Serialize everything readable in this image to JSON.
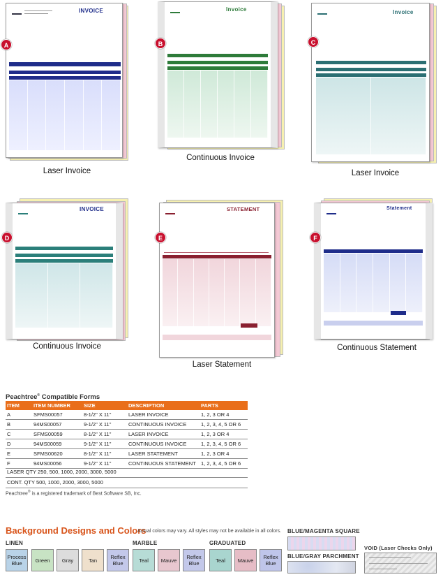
{
  "thumbnails": [
    {
      "letter": "A",
      "caption": "Laser Invoice",
      "title": "INVOICE"
    },
    {
      "letter": "B",
      "caption": "Continuous Invoice",
      "title": "Invoice"
    },
    {
      "letter": "C",
      "caption": "Laser Invoice",
      "title": "Invoice"
    },
    {
      "letter": "D",
      "caption": "Continuous Invoice",
      "title": "INVOICE"
    },
    {
      "letter": "E",
      "caption": "Laser Statement",
      "title": "STATEMENT"
    },
    {
      "letter": "F",
      "caption": "Continuous Statement",
      "title": "Statement"
    }
  ],
  "forms_table": {
    "title": "Peachtree",
    "title_mark": "®",
    "title_suffix": " Compatible Forms",
    "headers": [
      "ITEM",
      "ITEM NUMBER",
      "SIZE",
      "DESCRIPTION",
      "PARTS"
    ],
    "rows": [
      [
        "A",
        "SFMS00057",
        "8-1/2\" X 11\"",
        "LASER INVOICE",
        "1, 2, 3 OR 4"
      ],
      [
        "B",
        "94MS00057",
        "9-1/2\" X 11\"",
        "CONTINUOUS INVOICE",
        "1, 2, 3, 4, 5 OR 6"
      ],
      [
        "C",
        "SFMS00059",
        "8-1/2\" X 11\"",
        "LASER INVOICE",
        "1, 2, 3 OR 4"
      ],
      [
        "D",
        "94MS00059",
        "9-1/2\" X 11\"",
        "CONTINUOUS INVOICE",
        "1, 2, 3, 4, 5 OR 6"
      ],
      [
        "E",
        "SFMS00620",
        "8-1/2\" X 11\"",
        "LASER STATEMENT",
        "1, 2, 3 OR 4"
      ],
      [
        "F",
        "94MS00056",
        "9-1/2\" X 11\"",
        "CONTINUOUS STATEMENT",
        "1, 2, 3, 4, 5 OR 6"
      ]
    ],
    "laser_qty": "LASER QTY 250, 500, 1000, 2000, 3000, 5000",
    "cont_qty": "CONT. QTY 500, 1000, 2000, 3000, 5000",
    "trademark_name": "Peachtree",
    "trademark_mark": "®",
    "trademark_rest": " is a registered trademark of Best Software SB, Inc."
  },
  "background_designs": {
    "title": "Background Designs and Colors",
    "note": "Actual colors may vary. All styles may not be available in all colors.",
    "groups": {
      "linen": "LINEN",
      "marble": "MARBLE",
      "graduated": "GRADUATED",
      "blue_magenta": "BLUE/MAGENTA SQUARE",
      "blue_gray": "BLUE/GRAY PARCHMENT",
      "void": "VOID (Laser Checks Only)"
    },
    "swatches": [
      {
        "label": "Process Blue",
        "color": "#b9d3e8"
      },
      {
        "label": "Green",
        "color": "#c8e3c4"
      },
      {
        "label": "Gray",
        "color": "#dcdcdc"
      },
      {
        "label": "Tan",
        "color": "#efe0cc"
      },
      {
        "label": "Reflex Blue",
        "color": "#c3c8ea"
      },
      {
        "label": "Teal",
        "color": "#b7dcd6"
      },
      {
        "label": "Mauve",
        "color": "#e8c7cf"
      },
      {
        "label": "Reflex Blue",
        "color": "#c3c8ea"
      },
      {
        "label": "Teal",
        "color": "#a9d5cf"
      },
      {
        "label": "Mauve",
        "color": "#e6bdc6"
      },
      {
        "label": "Reflex Blue",
        "color": "#bfc5ea"
      }
    ]
  }
}
